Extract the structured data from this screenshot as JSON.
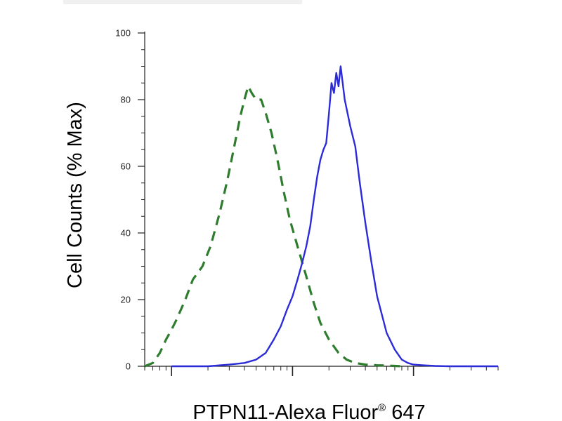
{
  "chart_data": {
    "type": "line",
    "title": "",
    "xlabel_main": "PTPN11-Alexa Fluor",
    "xlabel_sup": "®",
    "xlabel_tail": " 647",
    "ylabel": "Cell Counts (% Max)",
    "ylim": [
      0,
      100
    ],
    "y_ticks": [
      "0",
      "20",
      "40",
      "60",
      "80",
      "100"
    ],
    "xscale": "log",
    "xlim": [
      0.6,
      500
    ],
    "x_major_ticks": [
      1,
      10,
      100
    ],
    "grid": false,
    "legend": "none",
    "series": [
      {
        "style": "dashed",
        "color": "#2e7d2e",
        "x": [
          0.6,
          0.7,
          0.8,
          0.9,
          1.0,
          1.1,
          1.3,
          1.5,
          1.8,
          2.1,
          2.5,
          2.9,
          3.3,
          3.7,
          4.0,
          4.3,
          4.6,
          5.0,
          5.5,
          6.0,
          6.7,
          7.5,
          8.5,
          9.5,
          11,
          13,
          15,
          17,
          20,
          24,
          28,
          33,
          40,
          50,
          60,
          70,
          80
        ],
        "y": [
          0,
          1,
          4,
          8,
          11,
          14,
          20,
          26,
          30,
          36,
          46,
          56,
          66,
          75,
          80,
          84,
          82,
          80,
          80,
          76,
          70,
          62,
          52,
          44,
          36,
          27,
          19,
          13,
          8,
          4,
          2,
          1,
          0.5,
          0.3,
          0.2,
          0.1,
          0
        ]
      },
      {
        "style": "solid",
        "color": "#2b2bd8",
        "x": [
          1.0,
          1.5,
          2.0,
          3.0,
          4.0,
          5.0,
          6.0,
          7.0,
          8.0,
          9.0,
          10,
          11,
          12,
          13,
          14,
          15,
          16,
          17,
          18,
          19,
          20,
          21,
          22,
          23,
          24,
          25,
          27,
          30,
          33,
          36,
          40,
          45,
          50,
          60,
          70,
          80,
          90,
          100,
          120,
          150,
          200,
          300,
          500
        ],
        "y": [
          0,
          0,
          0,
          0.5,
          1,
          2,
          4,
          8,
          12,
          17,
          21,
          26,
          31,
          36,
          42,
          50,
          57,
          62,
          65,
          67,
          76,
          85,
          82,
          88,
          84,
          90,
          80,
          72,
          66,
          55,
          43,
          31,
          21,
          10,
          5,
          2,
          1,
          0.5,
          0.3,
          0.1,
          0,
          0,
          0
        ]
      }
    ]
  }
}
